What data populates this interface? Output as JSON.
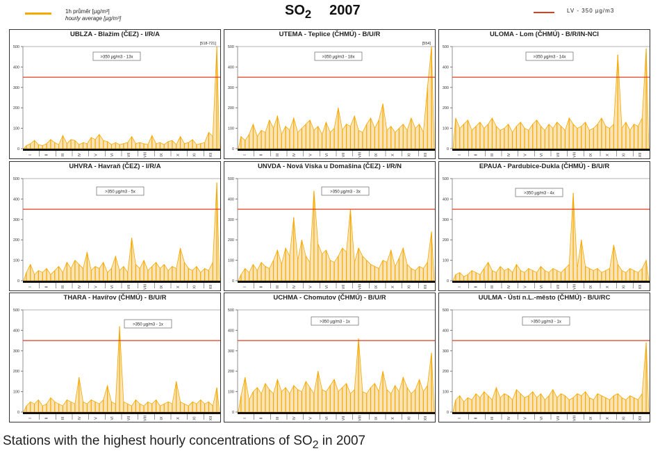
{
  "title": {
    "pollutant": "SO",
    "subscript": "2",
    "year": "2007"
  },
  "legend": {
    "series_cz": "1h průměr [µg/m³]",
    "series_en": "hourly average [µg/m³]",
    "series_color": "#f5a800",
    "limit_label": "LV   - 350 µg/m3",
    "limit_color": "#e03c1e"
  },
  "caption": {
    "text": "Stations with the highest hourly concentrations of SO",
    "subscript": "2",
    "suffix": " in 2007"
  },
  "chart_data": {
    "type": "area",
    "ylim": [
      0,
      500
    ],
    "yticks": [
      0,
      100,
      200,
      300,
      400,
      500
    ],
    "limit_value": 350,
    "months": [
      "I",
      "II",
      "III",
      "IV",
      "V",
      "VI",
      "VII",
      "VIII",
      "IX",
      "X",
      "XI",
      "XII"
    ],
    "panels": [
      {
        "title": "UBLZA - Blažim (ČEZ) - I/R/A",
        "exceed": ">350 µg/m3 - 13x",
        "max_note": "[518-721]",
        "values": [
          15,
          25,
          40,
          20,
          15,
          25,
          45,
          30,
          20,
          65,
          25,
          45,
          40,
          20,
          30,
          25,
          55,
          45,
          70,
          40,
          35,
          20,
          30,
          20,
          25,
          30,
          60,
          25,
          30,
          25,
          20,
          65,
          25,
          30,
          20,
          35,
          40,
          20,
          60,
          25,
          30,
          45,
          20,
          25,
          30,
          80,
          60,
          500
        ]
      },
      {
        "title": "UTEMA - Teplice (ČHMÚ) - B/U/R",
        "exceed": ">350 µg/m3 - 18x",
        "max_note": "[554]",
        "values": [
          60,
          40,
          70,
          120,
          60,
          90,
          80,
          140,
          100,
          160,
          70,
          110,
          90,
          150,
          80,
          100,
          120,
          140,
          90,
          110,
          70,
          130,
          80,
          100,
          200,
          90,
          120,
          110,
          160,
          90,
          80,
          120,
          150,
          100,
          140,
          220,
          90,
          110,
          80,
          100,
          120,
          90,
          150,
          100,
          120,
          80,
          300,
          500
        ]
      },
      {
        "title": "ULOMA - Lom (ČHMÚ) - B/R/IN-NCI",
        "exceed": ">350 µg/m3 - 14x",
        "max_note": "",
        "values": [
          150,
          100,
          120,
          140,
          90,
          110,
          130,
          100,
          120,
          150,
          110,
          90,
          100,
          120,
          80,
          110,
          130,
          100,
          90,
          120,
          140,
          110,
          90,
          120,
          100,
          130,
          110,
          90,
          150,
          120,
          100,
          110,
          130,
          90,
          100,
          120,
          150,
          110,
          100,
          120,
          460,
          100,
          130,
          90,
          120,
          110,
          150,
          490
        ]
      },
      {
        "title": "UHVRA - Havraň (ČEZ) - I/R/A",
        "exceed": ">350 µg/m3 - 5x",
        "max_note": "",
        "values": [
          40,
          80,
          30,
          50,
          40,
          60,
          30,
          50,
          70,
          40,
          90,
          60,
          100,
          80,
          60,
          140,
          50,
          70,
          60,
          90,
          40,
          60,
          120,
          50,
          70,
          40,
          210,
          80,
          60,
          100,
          50,
          70,
          90,
          60,
          80,
          50,
          70,
          60,
          160,
          90,
          60,
          50,
          70,
          40,
          60,
          50,
          90,
          480
        ]
      },
      {
        "title": "UNVDA - Nová Víska u Domašina (ČEZ) - I/R/N",
        "exceed": ">350 µg/m3 - 3x",
        "max_note": "",
        "values": [
          30,
          60,
          40,
          80,
          50,
          90,
          70,
          60,
          100,
          150,
          80,
          160,
          120,
          310,
          100,
          200,
          120,
          90,
          440,
          180,
          130,
          150,
          100,
          90,
          120,
          160,
          140,
          350,
          90,
          160,
          120,
          100,
          80,
          70,
          60,
          100,
          90,
          150,
          70,
          110,
          160,
          80,
          60,
          50,
          70,
          60,
          90,
          240
        ]
      },
      {
        "title": "EPAUA - Pardubice-Dukla (ČHMÚ) - B/U/R",
        "exceed": ">350 µg/m3 - 4x",
        "max_note": "",
        "values": [
          30,
          40,
          20,
          30,
          50,
          40,
          30,
          60,
          90,
          50,
          40,
          70,
          50,
          60,
          40,
          80,
          50,
          40,
          60,
          50,
          40,
          70,
          50,
          40,
          60,
          50,
          40,
          60,
          80,
          430,
          60,
          200,
          70,
          60,
          50,
          60,
          40,
          50,
          60,
          175,
          80,
          50,
          40,
          60,
          50,
          40,
          60,
          100
        ]
      },
      {
        "title": "THARA - Havířov (ČHMÚ) - B/U/R",
        "exceed": ">350 µg/m3 - 1x",
        "max_note": "",
        "values": [
          30,
          50,
          40,
          60,
          30,
          40,
          70,
          50,
          40,
          30,
          60,
          50,
          40,
          170,
          50,
          40,
          60,
          50,
          40,
          60,
          130,
          50,
          40,
          420,
          50,
          40,
          30,
          60,
          40,
          30,
          50,
          40,
          60,
          30,
          40,
          50,
          40,
          150,
          50,
          40,
          30,
          50,
          40,
          60,
          40,
          50,
          30,
          120
        ]
      },
      {
        "title": "UCHMA - Chomutov (ČHMÚ) - B/U/R",
        "exceed": ">350 µg/m3 - 1x",
        "max_note": "",
        "values": [
          80,
          170,
          60,
          100,
          120,
          90,
          140,
          110,
          90,
          160,
          100,
          120,
          90,
          130,
          110,
          100,
          150,
          120,
          90,
          200,
          110,
          100,
          130,
          160,
          100,
          120,
          140,
          90,
          110,
          360,
          100,
          90,
          120,
          140,
          100,
          200,
          110,
          90,
          130,
          100,
          170,
          120,
          90,
          110,
          160,
          100,
          130,
          290
        ]
      },
      {
        "title": "UULMA - Ústí n.L.-město (ČHMÚ) - B/U/RC",
        "exceed": ">350 µg/m3 - 1x",
        "max_note": "",
        "values": [
          60,
          80,
          50,
          70,
          60,
          90,
          70,
          100,
          80,
          60,
          120,
          70,
          90,
          80,
          60,
          110,
          90,
          70,
          80,
          100,
          70,
          90,
          60,
          80,
          110,
          70,
          90,
          80,
          60,
          70,
          90,
          80,
          100,
          70,
          60,
          90,
          80,
          70,
          60,
          80,
          90,
          70,
          60,
          80,
          70,
          60,
          90,
          340
        ]
      }
    ]
  }
}
